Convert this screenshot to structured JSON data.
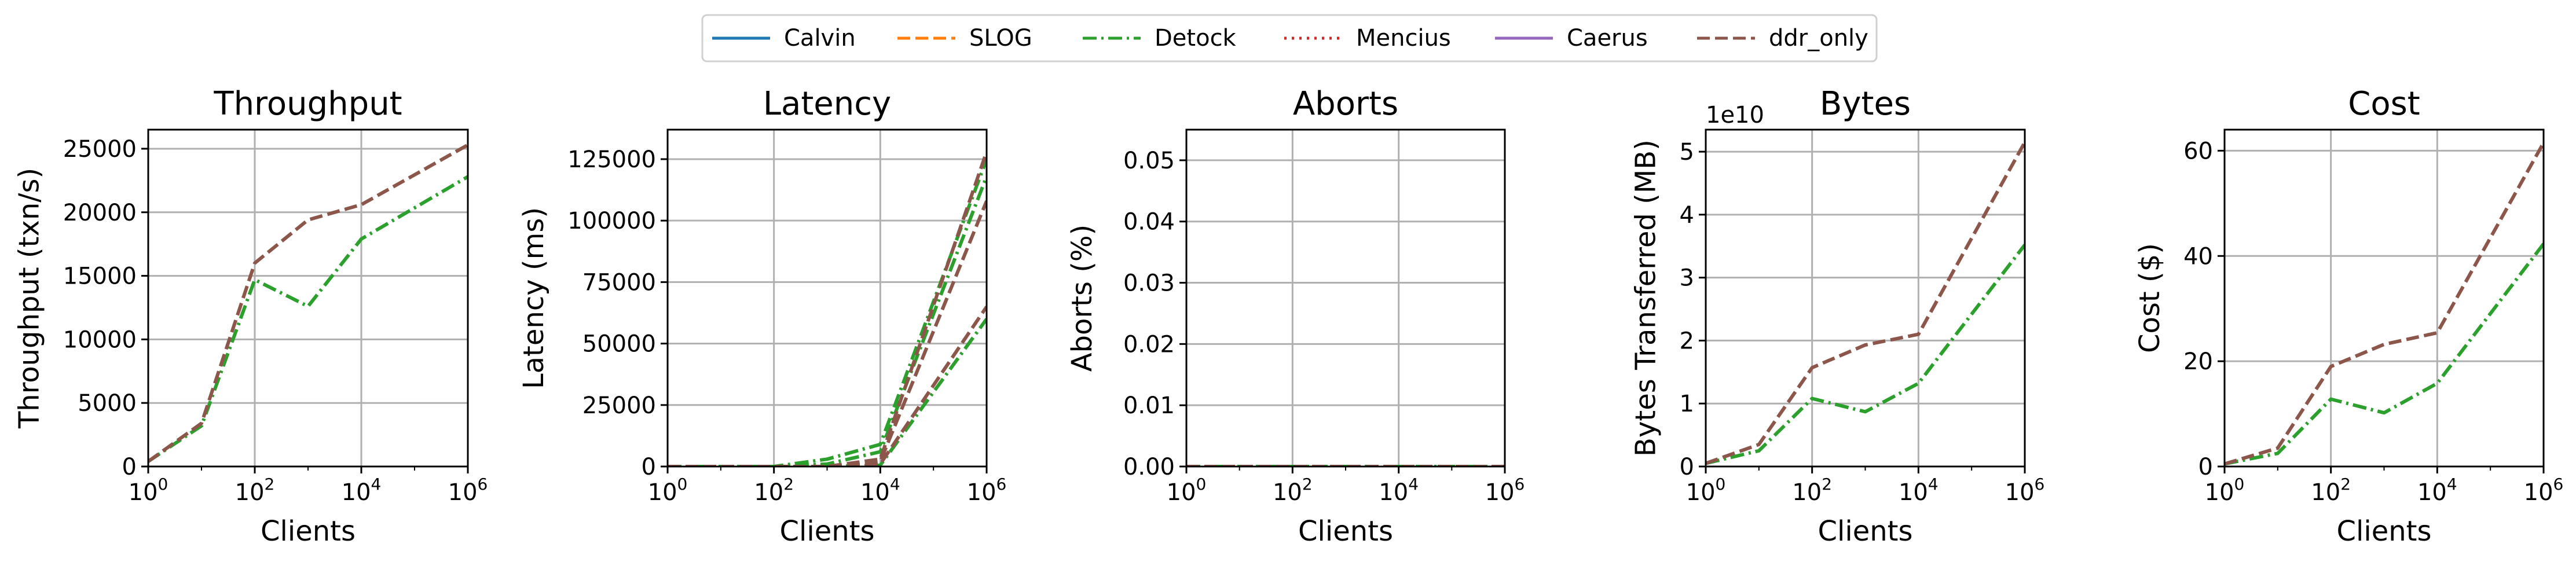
{
  "legend": {
    "items": [
      {
        "label": "Calvin",
        "color": "#1f77b4",
        "dash": "solid"
      },
      {
        "label": "SLOG",
        "color": "#ff7f0e",
        "dash": "dashed"
      },
      {
        "label": "Detock",
        "color": "#2ca02c",
        "dash": "dashdot"
      },
      {
        "label": "Mencius",
        "color": "#d62728",
        "dash": "dotted"
      },
      {
        "label": "Caerus",
        "color": "#9467bd",
        "dash": "solid"
      },
      {
        "label": "ddr_only",
        "color": "#8c564b",
        "dash": "dashed"
      }
    ]
  },
  "chart_data": [
    {
      "type": "line",
      "title": "Throughput",
      "xlabel": "Clients",
      "ylabel": "Throughput (txn/s)",
      "xscale": "log",
      "xlim": [
        1,
        1000000
      ],
      "ylim": [
        0,
        26500
      ],
      "yticks": [
        0,
        5000,
        10000,
        15000,
        20000,
        25000
      ],
      "ytick_labels": [
        "0",
        "5000",
        "10000",
        "15000",
        "20000",
        "25000"
      ],
      "x": [
        1,
        10,
        100,
        1000,
        10000,
        1000000
      ],
      "series": [
        {
          "name": "Detock",
          "values": [
            400,
            3200,
            14700,
            12600,
            17900,
            22800
          ]
        },
        {
          "name": "ddr_only",
          "values": [
            400,
            3400,
            16000,
            19400,
            20600,
            25300
          ]
        }
      ],
      "grid": true
    },
    {
      "type": "line",
      "title": "Latency",
      "xlabel": "Clients",
      "ylabel": "Latency (ms)",
      "xscale": "log",
      "xlim": [
        1,
        1000000
      ],
      "ylim": [
        0,
        137000
      ],
      "yticks": [
        0,
        25000,
        50000,
        75000,
        100000,
        125000
      ],
      "ytick_labels": [
        "0",
        "25000",
        "50000",
        "75000",
        "100000",
        "125000"
      ],
      "x": [
        1,
        10,
        100,
        1000,
        10000,
        1000000
      ],
      "series": [
        {
          "name": "Detock",
          "values": [
            0,
            0,
            0,
            3000,
            9000,
            125000
          ]
        },
        {
          "name": "Detock",
          "values": [
            0,
            0,
            0,
            1000,
            6000,
            118000
          ]
        },
        {
          "name": "Detock",
          "values": [
            0,
            0,
            0,
            0,
            500,
            60000
          ]
        },
        {
          "name": "ddr_only",
          "values": [
            0,
            0,
            0,
            0,
            3000,
            128000
          ]
        },
        {
          "name": "ddr_only",
          "values": [
            0,
            0,
            0,
            0,
            2000,
            108000
          ]
        },
        {
          "name": "ddr_only",
          "values": [
            0,
            0,
            0,
            0,
            1000,
            65000
          ]
        }
      ],
      "grid": true
    },
    {
      "type": "line",
      "title": "Aborts",
      "xlabel": "Clients",
      "ylabel": "Aborts (%)",
      "xscale": "log",
      "xlim": [
        1,
        1000000
      ],
      "ylim": [
        0,
        0.055
      ],
      "yticks": [
        0,
        0.01,
        0.02,
        0.03,
        0.04,
        0.05
      ],
      "ytick_labels": [
        "0.00",
        "0.01",
        "0.02",
        "0.03",
        "0.04",
        "0.05"
      ],
      "x": [
        1,
        10,
        100,
        1000,
        10000,
        1000000
      ],
      "series": [
        {
          "name": "Detock",
          "values": [
            0,
            0,
            0,
            0,
            0,
            0
          ]
        },
        {
          "name": "ddr_only",
          "values": [
            0,
            0,
            0,
            0,
            0,
            0
          ]
        }
      ],
      "grid": true
    },
    {
      "type": "line",
      "title": "Bytes",
      "xlabel": "Clients",
      "ylabel": "Bytes Transferred (MB)",
      "offset_label": "1e10",
      "xscale": "log",
      "xlim": [
        1,
        1000000
      ],
      "ylim": [
        0,
        5.35
      ],
      "yticks": [
        0,
        1,
        2,
        3,
        4,
        5
      ],
      "ytick_labels": [
        "0",
        "1",
        "2",
        "3",
        "4",
        "5"
      ],
      "x": [
        1,
        10,
        100,
        1000,
        10000,
        1000000
      ],
      "series": [
        {
          "name": "Detock",
          "values": [
            0.05,
            0.25,
            1.08,
            0.87,
            1.32,
            3.52
          ]
        },
        {
          "name": "ddr_only",
          "values": [
            0.05,
            0.35,
            1.57,
            1.93,
            2.1,
            5.15
          ]
        }
      ],
      "grid": true
    },
    {
      "type": "line",
      "title": "Cost",
      "xlabel": "Clients",
      "ylabel": "Cost ($)",
      "xscale": "log",
      "xlim": [
        1,
        1000000
      ],
      "ylim": [
        0,
        64
      ],
      "yticks": [
        0,
        20,
        40,
        60
      ],
      "ytick_labels": [
        "0",
        "20",
        "40",
        "60"
      ],
      "x": [
        1,
        10,
        100,
        1000,
        10000,
        1000000
      ],
      "series": [
        {
          "name": "Detock",
          "values": [
            0.5,
            2.5,
            12.8,
            10.2,
            15.8,
            42.3
          ]
        },
        {
          "name": "ddr_only",
          "values": [
            0.5,
            3.5,
            19.0,
            23.2,
            25.4,
            61.5
          ]
        }
      ],
      "grid": true
    }
  ]
}
